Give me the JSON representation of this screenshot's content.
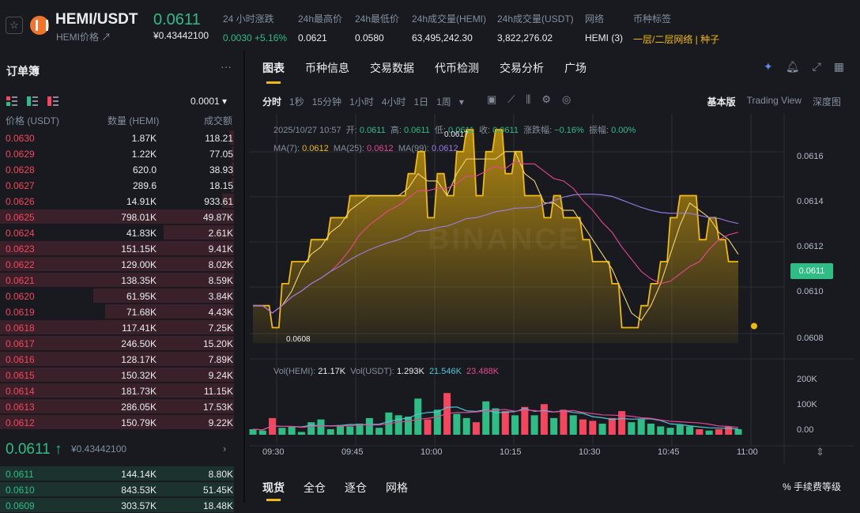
{
  "header": {
    "pair": "HEMI/USDT",
    "sub": "HEMI价格 ↗",
    "price": "0.0611",
    "price_cny": "¥0.43442100",
    "stats": [
      {
        "label": "24 小时涨跌",
        "value": "0.0030 +5.16%",
        "color": "green"
      },
      {
        "label": "24h最高价",
        "value": "0.0621",
        "color": ""
      },
      {
        "label": "24h最低价",
        "value": "0.0580",
        "color": ""
      },
      {
        "label": "24h成交量(HEMI)",
        "value": "63,495,242.30",
        "color": ""
      },
      {
        "label": "24h成交量(USDT)",
        "value": "3,822,276.02",
        "color": ""
      },
      {
        "label": "网络",
        "value": "HEMI (3)",
        "color": ""
      },
      {
        "label": "币种标签",
        "value": "一层/二层网络 | 种子",
        "color": "yellow"
      }
    ]
  },
  "orderbook": {
    "title": "订单簿",
    "precision": "0.0001 ▾",
    "headers": {
      "price": "价格 (USDT)",
      "qty": "数量 (HEMI)",
      "total": "成交额"
    },
    "asks": [
      {
        "p": "0.0630",
        "q": "1.87K",
        "t": "118.21",
        "d": 0.02
      },
      {
        "p": "0.0629",
        "q": "1.22K",
        "t": "77.05",
        "d": 0.01
      },
      {
        "p": "0.0628",
        "q": "620.0",
        "t": "38.93",
        "d": 0.01
      },
      {
        "p": "0.0627",
        "q": "289.6",
        "t": "18.15",
        "d": 0.01
      },
      {
        "p": "0.0626",
        "q": "14.91K",
        "t": "933.61",
        "d": 0.05
      },
      {
        "p": "0.0625",
        "q": "798.01K",
        "t": "49.87K",
        "d": 1.0
      },
      {
        "p": "0.0624",
        "q": "41.83K",
        "t": "2.61K",
        "d": 0.3
      },
      {
        "p": "0.0623",
        "q": "151.15K",
        "t": "9.41K",
        "d": 1.0
      },
      {
        "p": "0.0622",
        "q": "129.00K",
        "t": "8.02K",
        "d": 1.0
      },
      {
        "p": "0.0621",
        "q": "138.35K",
        "t": "8.59K",
        "d": 1.0
      },
      {
        "p": "0.0620",
        "q": "61.95K",
        "t": "3.84K",
        "d": 0.6
      },
      {
        "p": "0.0619",
        "q": "71.68K",
        "t": "4.43K",
        "d": 0.55
      },
      {
        "p": "0.0618",
        "q": "117.41K",
        "t": "7.25K",
        "d": 1.0
      },
      {
        "p": "0.0617",
        "q": "246.50K",
        "t": "15.20K",
        "d": 1.0
      },
      {
        "p": "0.0616",
        "q": "128.17K",
        "t": "7.89K",
        "d": 1.0
      },
      {
        "p": "0.0615",
        "q": "150.32K",
        "t": "9.24K",
        "d": 1.0
      },
      {
        "p": "0.0614",
        "q": "181.73K",
        "t": "11.15K",
        "d": 1.0
      },
      {
        "p": "0.0613",
        "q": "286.05K",
        "t": "17.53K",
        "d": 1.0
      },
      {
        "p": "0.0612",
        "q": "150.79K",
        "t": "9.22K",
        "d": 1.0
      }
    ],
    "mid_price": "0.0611 ↑",
    "mid_cny": "¥0.43442100",
    "bids": [
      {
        "p": "0.0611",
        "q": "144.14K",
        "t": "8.80K",
        "d": 1.0
      },
      {
        "p": "0.0610",
        "q": "843.53K",
        "t": "51.45K",
        "d": 1.0
      },
      {
        "p": "0.0609",
        "q": "303.57K",
        "t": "18.48K",
        "d": 1.0
      }
    ]
  },
  "chart": {
    "tabs": [
      "图表",
      "币种信息",
      "交易数据",
      "代币检测",
      "交易分析",
      "广场"
    ],
    "intervals": [
      "分时",
      "1秒",
      "15分钟",
      "1小时",
      "4小时",
      "1日",
      "1周",
      "▾"
    ],
    "views": [
      "基本版",
      "Trading View",
      "深度图"
    ],
    "ohlc_legend": {
      "date": "2025/10/27 10:57",
      "open_label": "开:",
      "open": "0.0611",
      "high_label": "高:",
      "high": "0.0611",
      "low_label": "低:",
      "low": "0.0611",
      "close_label": "收:",
      "close": "0.0611",
      "chg_label": "涨跌幅:",
      "chg": "−0.16%",
      "amp_label": "振幅:",
      "amp": "0.00%"
    },
    "ma_legend": {
      "ma7_label": "MA(7):",
      "ma7": "0.0612",
      "ma25_label": "MA(25):",
      "ma25": "0.0612",
      "ma99_label": "MA(99):",
      "ma99": "0.0612"
    },
    "vol_legend": {
      "hemi_label": "Vol(HEMI):",
      "hemi": "21.17K",
      "usdt_label": "Vol(USDT):",
      "usdt": "1.293K",
      "v1": "21.546K",
      "v2": "23.488K"
    },
    "y_labels": [
      "0.0616",
      "0.0614",
      "0.0612",
      "0.0610",
      "0.0608"
    ],
    "vol_labels": [
      "200K",
      "100K",
      "0.00"
    ],
    "x_labels": [
      "09:30",
      "09:45",
      "10:00",
      "10:15",
      "10:30",
      "10:45",
      "11:00"
    ],
    "current_tag": "0.0611",
    "max_annot": "0.0617",
    "min_annot": "0.0608",
    "watermark": "BINANCE"
  },
  "chart_data": {
    "type": "area",
    "y_range": [
      0.06073,
      0.0617
    ],
    "price": [
      0.0609,
      0.0609,
      0.0608,
      0.061,
      0.0611,
      0.0611,
      0.0612,
      0.0612,
      0.0613,
      0.0613,
      0.0614,
      0.0614,
      0.0614,
      0.0614,
      0.0614,
      0.0614,
      0.0615,
      0.0616,
      0.0613,
      0.0615,
      0.0614,
      0.0616,
      0.0617,
      0.0614,
      0.0616,
      0.0617,
      0.0615,
      0.0616,
      0.0614,
      0.0614,
      0.0613,
      0.0614,
      0.0613,
      0.0613,
      0.0612,
      0.0611,
      0.0611,
      0.061,
      0.0608,
      0.0608,
      0.0609,
      0.061,
      0.0611,
      0.0613,
      0.0614,
      0.0614,
      0.0612,
      0.0613,
      0.0612,
      0.0611,
      0.0611
    ],
    "volume": [
      20,
      15,
      60,
      25,
      30,
      10,
      45,
      55,
      20,
      35,
      30,
      40,
      60,
      25,
      80,
      70,
      65,
      130,
      55,
      90,
      150,
      75,
      60,
      45,
      120,
      95,
      85,
      70,
      100,
      70,
      110,
      60,
      90,
      70,
      55,
      50,
      40,
      60,
      85,
      45,
      55,
      40,
      30,
      25,
      35,
      30,
      20,
      15,
      20,
      30,
      20
    ],
    "vol_axis_max": 250000
  },
  "bottom": {
    "tabs": [
      "现货",
      "全仓",
      "逐仓",
      "网格"
    ],
    "fee_level": "%  手续费等级"
  }
}
